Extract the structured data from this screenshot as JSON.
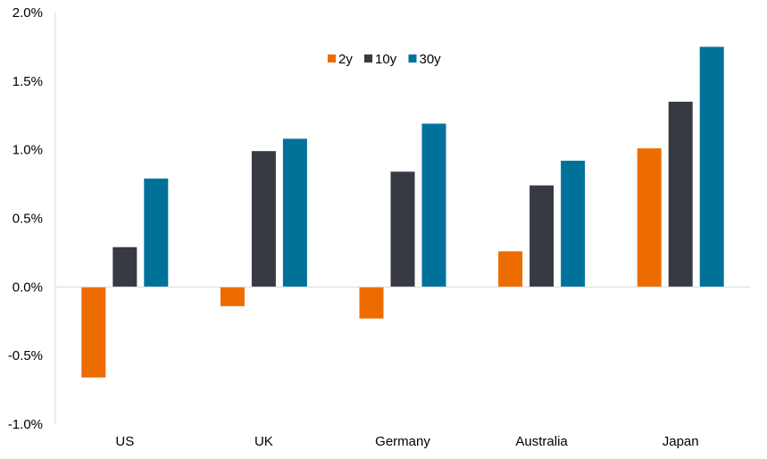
{
  "chart_data": {
    "type": "bar",
    "categories": [
      "US",
      "UK",
      "Germany",
      "Australia",
      "Japan"
    ],
    "series": [
      {
        "name": "2y",
        "color": "#ED6C00",
        "values": [
          -0.66,
          -0.14,
          -0.23,
          0.26,
          1.01
        ]
      },
      {
        "name": "10y",
        "color": "#373A43",
        "values": [
          0.29,
          0.99,
          0.84,
          0.74,
          1.35
        ]
      },
      {
        "name": "30y",
        "color": "#00729A",
        "values": [
          0.79,
          1.08,
          1.19,
          0.92,
          1.75
        ]
      }
    ],
    "ylim": [
      -1.0,
      2.0
    ],
    "yticks": [
      -1.0,
      -0.5,
      0.0,
      0.5,
      1.0,
      1.5,
      2.0
    ],
    "ytick_labels": [
      "-1.0%",
      "-0.5%",
      "0.0%",
      "0.5%",
      "1.0%",
      "1.5%",
      "2.0%"
    ],
    "title": "",
    "xlabel": "",
    "ylabel": "",
    "grid": false,
    "legend_position": "top-center"
  }
}
